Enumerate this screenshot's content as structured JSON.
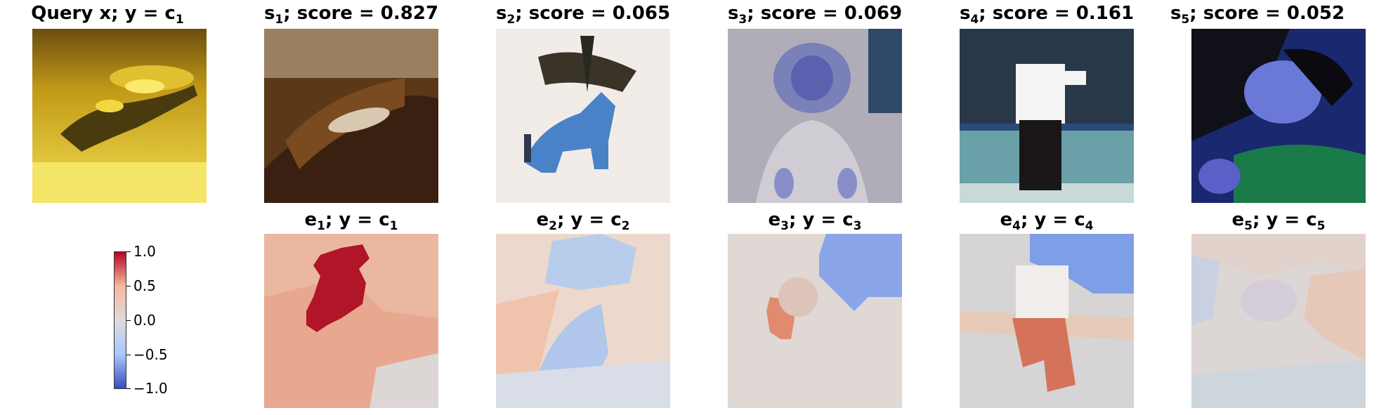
{
  "top_row": [
    {
      "label": "Query x; y = c",
      "sub": "1",
      "suffix": ""
    },
    {
      "label": "s",
      "sub": "1",
      "suffix": "; score = 0.827"
    },
    {
      "label": "s",
      "sub": "2",
      "suffix": "; score = 0.065"
    },
    {
      "label": "s",
      "sub": "3",
      "suffix": "; score = 0.069"
    },
    {
      "label": "s",
      "sub": "4",
      "suffix": "; score = 0.161"
    },
    {
      "label": "s",
      "sub": "5",
      "suffix": "; score = 0.052"
    }
  ],
  "bottom_row": [
    {
      "label": "e",
      "sub": "1",
      "mid": "; y = c",
      "sub2": "1"
    },
    {
      "label": "e",
      "sub": "2",
      "mid": "; y = c",
      "sub2": "2"
    },
    {
      "label": "e",
      "sub": "3",
      "mid": "; y = c",
      "sub2": "3"
    },
    {
      "label": "e",
      "sub": "4",
      "mid": "; y = c",
      "sub2": "4"
    },
    {
      "label": "e",
      "sub": "5",
      "mid": "; y = c",
      "sub2": "5"
    }
  ],
  "colorbar": {
    "ticks": [
      "1.0",
      "0.5",
      "0.0",
      "−0.5",
      "−1.0"
    ],
    "colormap": "coolwarm",
    "max_color": "#b40426",
    "min_color": "#3b4cc0"
  }
}
